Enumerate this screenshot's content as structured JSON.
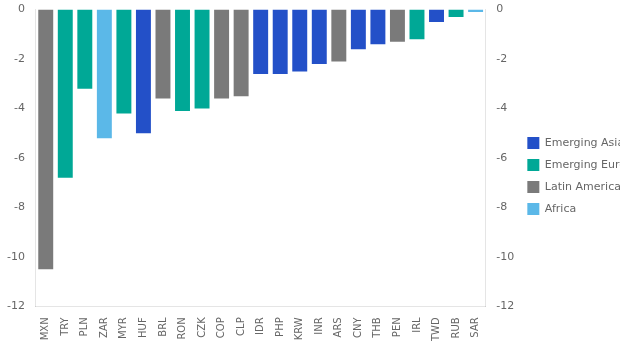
{
  "chart_data": {
    "type": "bar",
    "categories": [
      "MXN",
      "TRY",
      "PLN",
      "ZAR",
      "MYR",
      "HUF",
      "BRL",
      "RON",
      "CZK",
      "COP",
      "CLP",
      "IDR",
      "PHP",
      "KRW",
      "INR",
      "ARS",
      "CNY",
      "THB",
      "PEN",
      "IRL",
      "TWD",
      "RUB",
      "SAR"
    ],
    "series": [
      {
        "name": "Emerging Asia",
        "color": "#2350C8",
        "values": [
          null,
          null,
          null,
          null,
          null,
          -5.0,
          null,
          null,
          null,
          null,
          null,
          -2.6,
          -2.6,
          -2.5,
          -2.2,
          null,
          -1.6,
          -1.4,
          null,
          null,
          -0.5,
          null,
          null
        ]
      },
      {
        "name": "Emerging Europe",
        "color": "#00A896",
        "values": [
          null,
          -6.8,
          -3.2,
          null,
          -4.2,
          null,
          null,
          -4.1,
          -4.0,
          null,
          null,
          null,
          null,
          null,
          null,
          null,
          null,
          null,
          null,
          -1.2,
          null,
          -0.3,
          null
        ]
      },
      {
        "name": "Latin America",
        "color": "#7A7A7A",
        "values": [
          -10.5,
          null,
          null,
          null,
          null,
          null,
          -3.6,
          null,
          null,
          -3.6,
          -3.5,
          null,
          null,
          null,
          null,
          -2.1,
          null,
          null,
          -1.3,
          null,
          null,
          null,
          null
        ]
      },
      {
        "name": "Africa",
        "color": "#5BB8E8",
        "values": [
          null,
          null,
          null,
          -5.2,
          null,
          null,
          null,
          null,
          null,
          null,
          null,
          null,
          null,
          null,
          null,
          null,
          null,
          null,
          null,
          null,
          null,
          null,
          -0.1
        ]
      }
    ],
    "ylim": [
      -12,
      0
    ],
    "yticks": [
      0,
      -2,
      -4,
      -6,
      -8,
      -10,
      -12
    ],
    "y2lim": [
      -12,
      0
    ],
    "y2ticks": [
      0,
      -2,
      -4,
      -6,
      -8,
      -10,
      -12
    ],
    "grid": false,
    "legend": "right"
  }
}
